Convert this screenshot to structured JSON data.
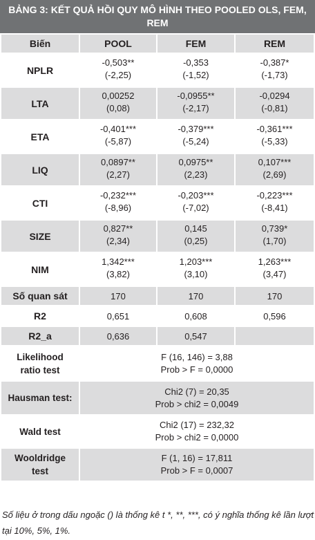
{
  "title": "BẢNG 3: KẾT QUẢ HỒI QUY MÔ HÌNH THEO POOLED OLS, FEM, REM",
  "header": [
    "Biến",
    "POOL",
    "FEM",
    "REM"
  ],
  "coef_rows": [
    {
      "var": "NPLR",
      "pool": [
        "-0,503**",
        "(-2,25)"
      ],
      "fem": [
        "-0,353",
        "(-1,52)"
      ],
      "rem": [
        "-0,387*",
        "(-1,73)"
      ]
    },
    {
      "var": "LTA",
      "pool": [
        "0,00252",
        "(0,08)"
      ],
      "fem": [
        "-0,0955**",
        "(-2,17)"
      ],
      "rem": [
        "-0,0294",
        "(-0,81)"
      ]
    },
    {
      "var": "ETA",
      "pool": [
        "-0,401***",
        "(-5,87)"
      ],
      "fem": [
        "-0,379***",
        "(-5,24)"
      ],
      "rem": [
        "-0,361***",
        "(-5,33)"
      ]
    },
    {
      "var": "LIQ",
      "pool": [
        "0,0897**",
        "(2,27)"
      ],
      "fem": [
        "0,0975**",
        "(2,23)"
      ],
      "rem": [
        "0,107***",
        "(2,69)"
      ]
    },
    {
      "var": "CTI",
      "pool": [
        "-0,232***",
        "(-8,96)"
      ],
      "fem": [
        "-0,203***",
        "(-7,02)"
      ],
      "rem": [
        "-0,223***",
        "(-8,41)"
      ]
    },
    {
      "var": "SIZE",
      "pool": [
        "0,827**",
        "(2,34)"
      ],
      "fem": [
        "0,145",
        "(0,25)"
      ],
      "rem": [
        "0,739*",
        "(1,70)"
      ]
    },
    {
      "var": "NIM",
      "pool": [
        "1,342***",
        "(3,82)"
      ],
      "fem": [
        "1,203***",
        "(3,10)"
      ],
      "rem": [
        "1,263***",
        "(3,47)"
      ]
    }
  ],
  "stat_rows": [
    {
      "var": "Số quan sát",
      "pool": "170",
      "fem": "170",
      "rem": "170"
    },
    {
      "var": "R2",
      "pool": "0,651",
      "fem": "0,608",
      "rem": "0,596"
    },
    {
      "var": "R2_a",
      "pool": "0,636",
      "fem": "0,547",
      "rem": ""
    }
  ],
  "tests": [
    {
      "label": [
        "Likelihood",
        "ratio test"
      ],
      "lines": [
        "F (16, 146) = 3,88",
        "Prob > F = 0,0000"
      ]
    },
    {
      "label": [
        "Hausman test:"
      ],
      "lines": [
        "Chi2 (7) = 20,35",
        "Prob > chi2 = 0,0049"
      ]
    },
    {
      "label": [
        "Wald test"
      ],
      "lines": [
        "Chi2 (17) = 232,32",
        "Prob > chi2 = 0,0000"
      ]
    },
    {
      "label": [
        "Wooldridge",
        "test"
      ],
      "lines": [
        "F (1, 16) = 17,811",
        "Prob > F = 0,0007"
      ]
    }
  ],
  "footnote": "Số liệu ở trong dấu ngoặc () là thống kê t *, **, ***, có ý nghĩa thống kê lần lượt tại 10%, 5%, 1%."
}
